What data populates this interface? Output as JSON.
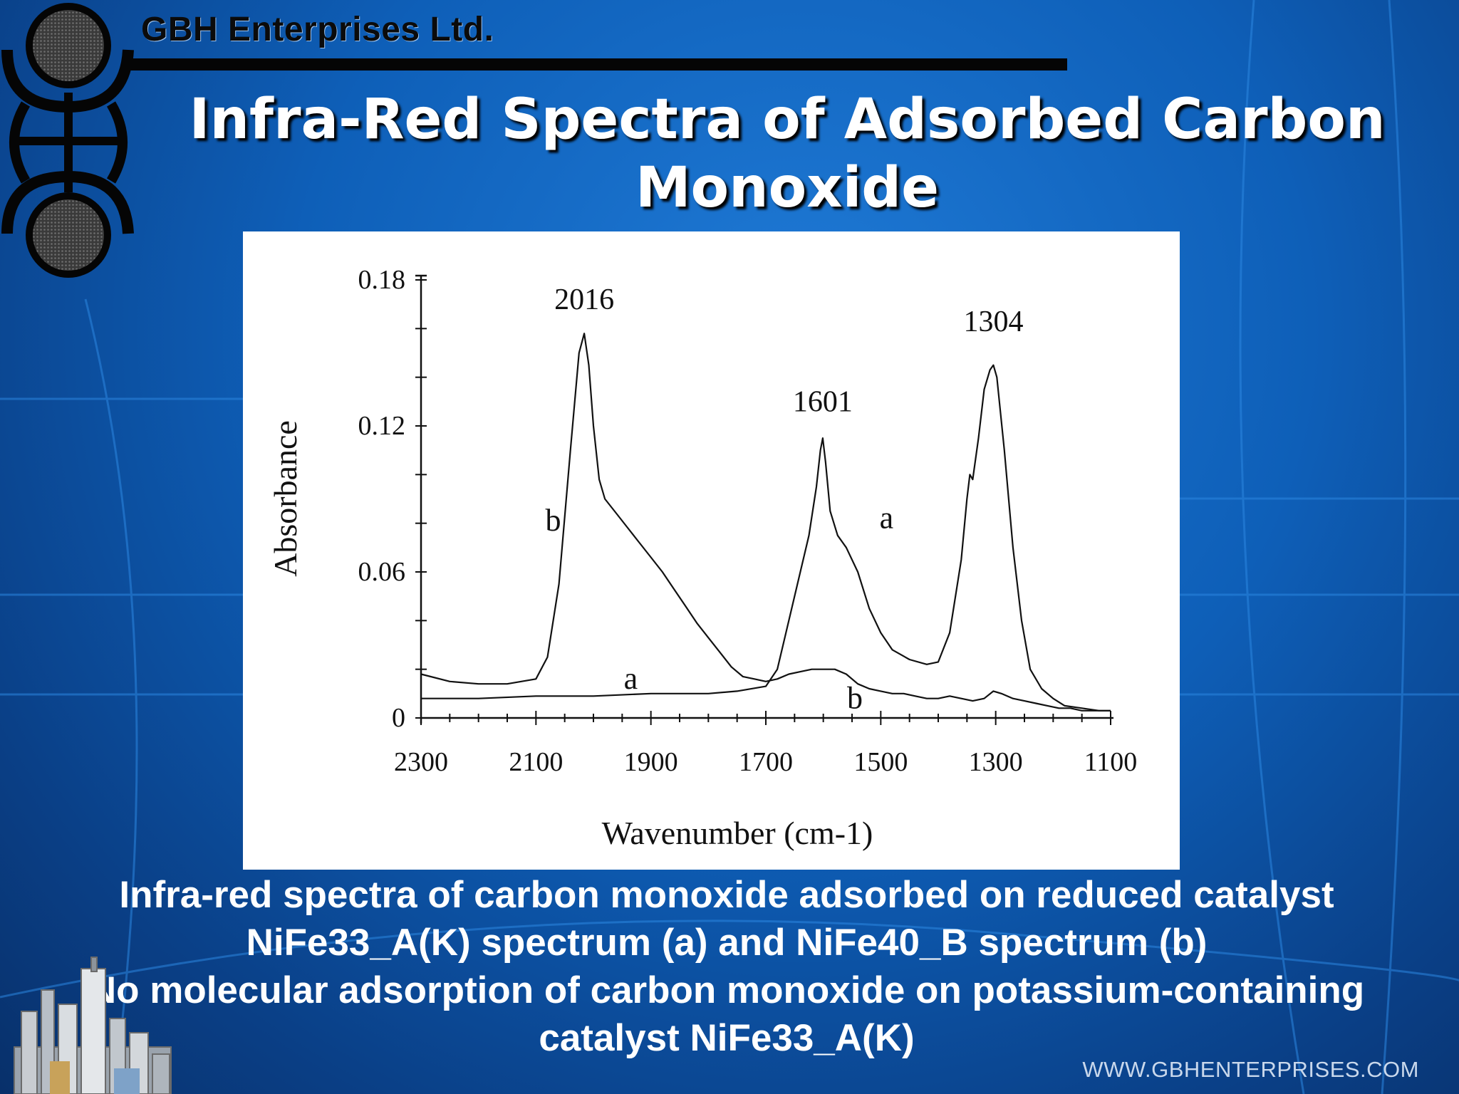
{
  "header": {
    "company": "GBH Enterprises Ltd.",
    "title_line1": "Infra-Red Spectra of Adsorbed Carbon",
    "title_line2": "Monoxide"
  },
  "caption": {
    "line1": "Infra-red spectra of carbon monoxide adsorbed on reduced catalyst",
    "line2": "NiFe33_A(K) spectrum (a) and NiFe40_B spectrum (b)",
    "line3": "No molecular adsorption of carbon monoxide on potassium-containing",
    "line4": "catalyst NiFe33_A(K)"
  },
  "footer": {
    "website": "WWW.GBHENTERPRISES.COM"
  },
  "colors": {
    "background": "#0e5fb8",
    "title_text": "#ffffff",
    "plot_background": "#ffffff",
    "trace": "#111111"
  },
  "icons": {
    "logo": "gbh-logo-icon",
    "plant": "refinery-plant-icon"
  },
  "chart_data": {
    "type": "line",
    "xlabel": "Wavenumber (cm-1)",
    "ylabel": "Absorbance",
    "xlim": [
      2300,
      1100
    ],
    "ylim": [
      0,
      0.18
    ],
    "x_ticks": [
      2300,
      2100,
      1900,
      1700,
      1500,
      1300,
      1100
    ],
    "y_ticks": [
      0,
      0.06,
      0.12,
      0.18
    ],
    "y_tick_labels": [
      "0",
      "0.06",
      "0.12",
      "0.18"
    ],
    "grid": false,
    "series": [
      {
        "name": "a",
        "x": [
          2300,
          2200,
          2100,
          2000,
          1900,
          1800,
          1750,
          1700,
          1680,
          1660,
          1640,
          1625,
          1612,
          1605,
          1601,
          1596,
          1588,
          1575,
          1560,
          1540,
          1520,
          1500,
          1480,
          1450,
          1420,
          1400,
          1380,
          1360,
          1350,
          1345,
          1340,
          1330,
          1320,
          1310,
          1304,
          1298,
          1285,
          1270,
          1255,
          1240,
          1220,
          1200,
          1180,
          1150,
          1120,
          1100
        ],
        "y": [
          0.008,
          0.008,
          0.009,
          0.009,
          0.01,
          0.01,
          0.011,
          0.013,
          0.02,
          0.04,
          0.06,
          0.075,
          0.095,
          0.11,
          0.115,
          0.105,
          0.085,
          0.075,
          0.07,
          0.06,
          0.045,
          0.035,
          0.028,
          0.024,
          0.022,
          0.023,
          0.035,
          0.065,
          0.09,
          0.1,
          0.098,
          0.115,
          0.135,
          0.143,
          0.145,
          0.14,
          0.11,
          0.07,
          0.04,
          0.02,
          0.012,
          0.008,
          0.005,
          0.004,
          0.003,
          0.003
        ]
      },
      {
        "name": "b",
        "x": [
          2300,
          2250,
          2200,
          2150,
          2100,
          2080,
          2060,
          2040,
          2025,
          2016,
          2008,
          2000,
          1990,
          1980,
          1960,
          1940,
          1920,
          1900,
          1880,
          1860,
          1840,
          1820,
          1800,
          1780,
          1760,
          1740,
          1720,
          1700,
          1680,
          1660,
          1640,
          1620,
          1600,
          1580,
          1560,
          1540,
          1520,
          1500,
          1480,
          1460,
          1440,
          1420,
          1400,
          1380,
          1360,
          1340,
          1320,
          1304,
          1290,
          1270,
          1250,
          1230,
          1210,
          1190,
          1170,
          1150,
          1130,
          1110,
          1100
        ],
        "y": [
          0.018,
          0.015,
          0.014,
          0.014,
          0.016,
          0.025,
          0.055,
          0.11,
          0.15,
          0.158,
          0.145,
          0.12,
          0.098,
          0.09,
          0.084,
          0.078,
          0.072,
          0.066,
          0.06,
          0.053,
          0.046,
          0.039,
          0.033,
          0.027,
          0.021,
          0.017,
          0.016,
          0.015,
          0.016,
          0.018,
          0.019,
          0.02,
          0.02,
          0.02,
          0.018,
          0.014,
          0.012,
          0.011,
          0.01,
          0.01,
          0.009,
          0.008,
          0.008,
          0.009,
          0.008,
          0.007,
          0.008,
          0.011,
          0.01,
          0.008,
          0.007,
          0.006,
          0.005,
          0.004,
          0.004,
          0.003,
          0.003,
          0.003,
          0.003
        ]
      }
    ],
    "annotations": [
      {
        "text": "2016",
        "x": 2016,
        "y": 0.168
      },
      {
        "text": "1601",
        "x": 1601,
        "y": 0.126
      },
      {
        "text": "1304",
        "x": 1304,
        "y": 0.159
      },
      {
        "text": "b",
        "x": 2070,
        "y": 0.077
      },
      {
        "text": "a",
        "x": 1490,
        "y": 0.078
      },
      {
        "text": "a",
        "x": 1935,
        "y": 0.012
      },
      {
        "text": "b",
        "x": 1545,
        "y": 0.004
      }
    ]
  }
}
